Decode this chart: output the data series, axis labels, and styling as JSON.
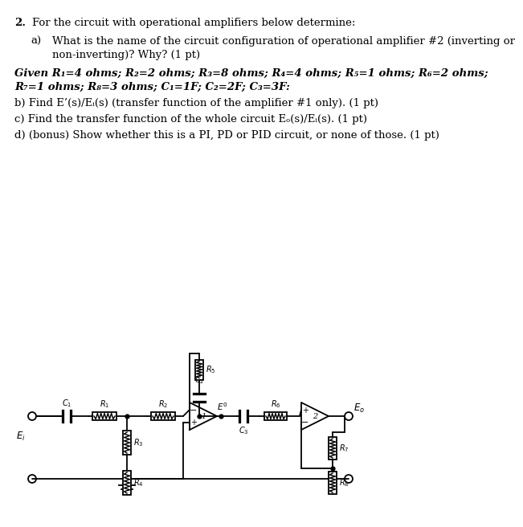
{
  "line1_bold": "2.",
  "line1_text": "  For the circuit with operational amplifiers below determine:",
  "line_a1": "   a)   What is the name of the circuit configuration of operational amplifier #2 (inverting or",
  "line_a2": "          non-inverting)? Why? (1 pt)",
  "line_given1": "Given R",
  "line_given1_rest": "=4 ohms; R",
  "line_b": "b) Find E’(s)/E",
  "line_b_rest": "(s) (transfer function of the amplifier #1 only). (1 pt)",
  "line_c": "c) Find the transfer function of the whole circuit E",
  "line_c_rest": "(s)/E",
  "line_c_rest2": "(s). (1 pt)",
  "line_d": "d) (bonus) Show whether this is a PI, PD or PID circuit, or none of those. (1 pt)",
  "separator_color": "#9e9e9e",
  "text_color": "#000000",
  "bg_color": "#ffffff"
}
